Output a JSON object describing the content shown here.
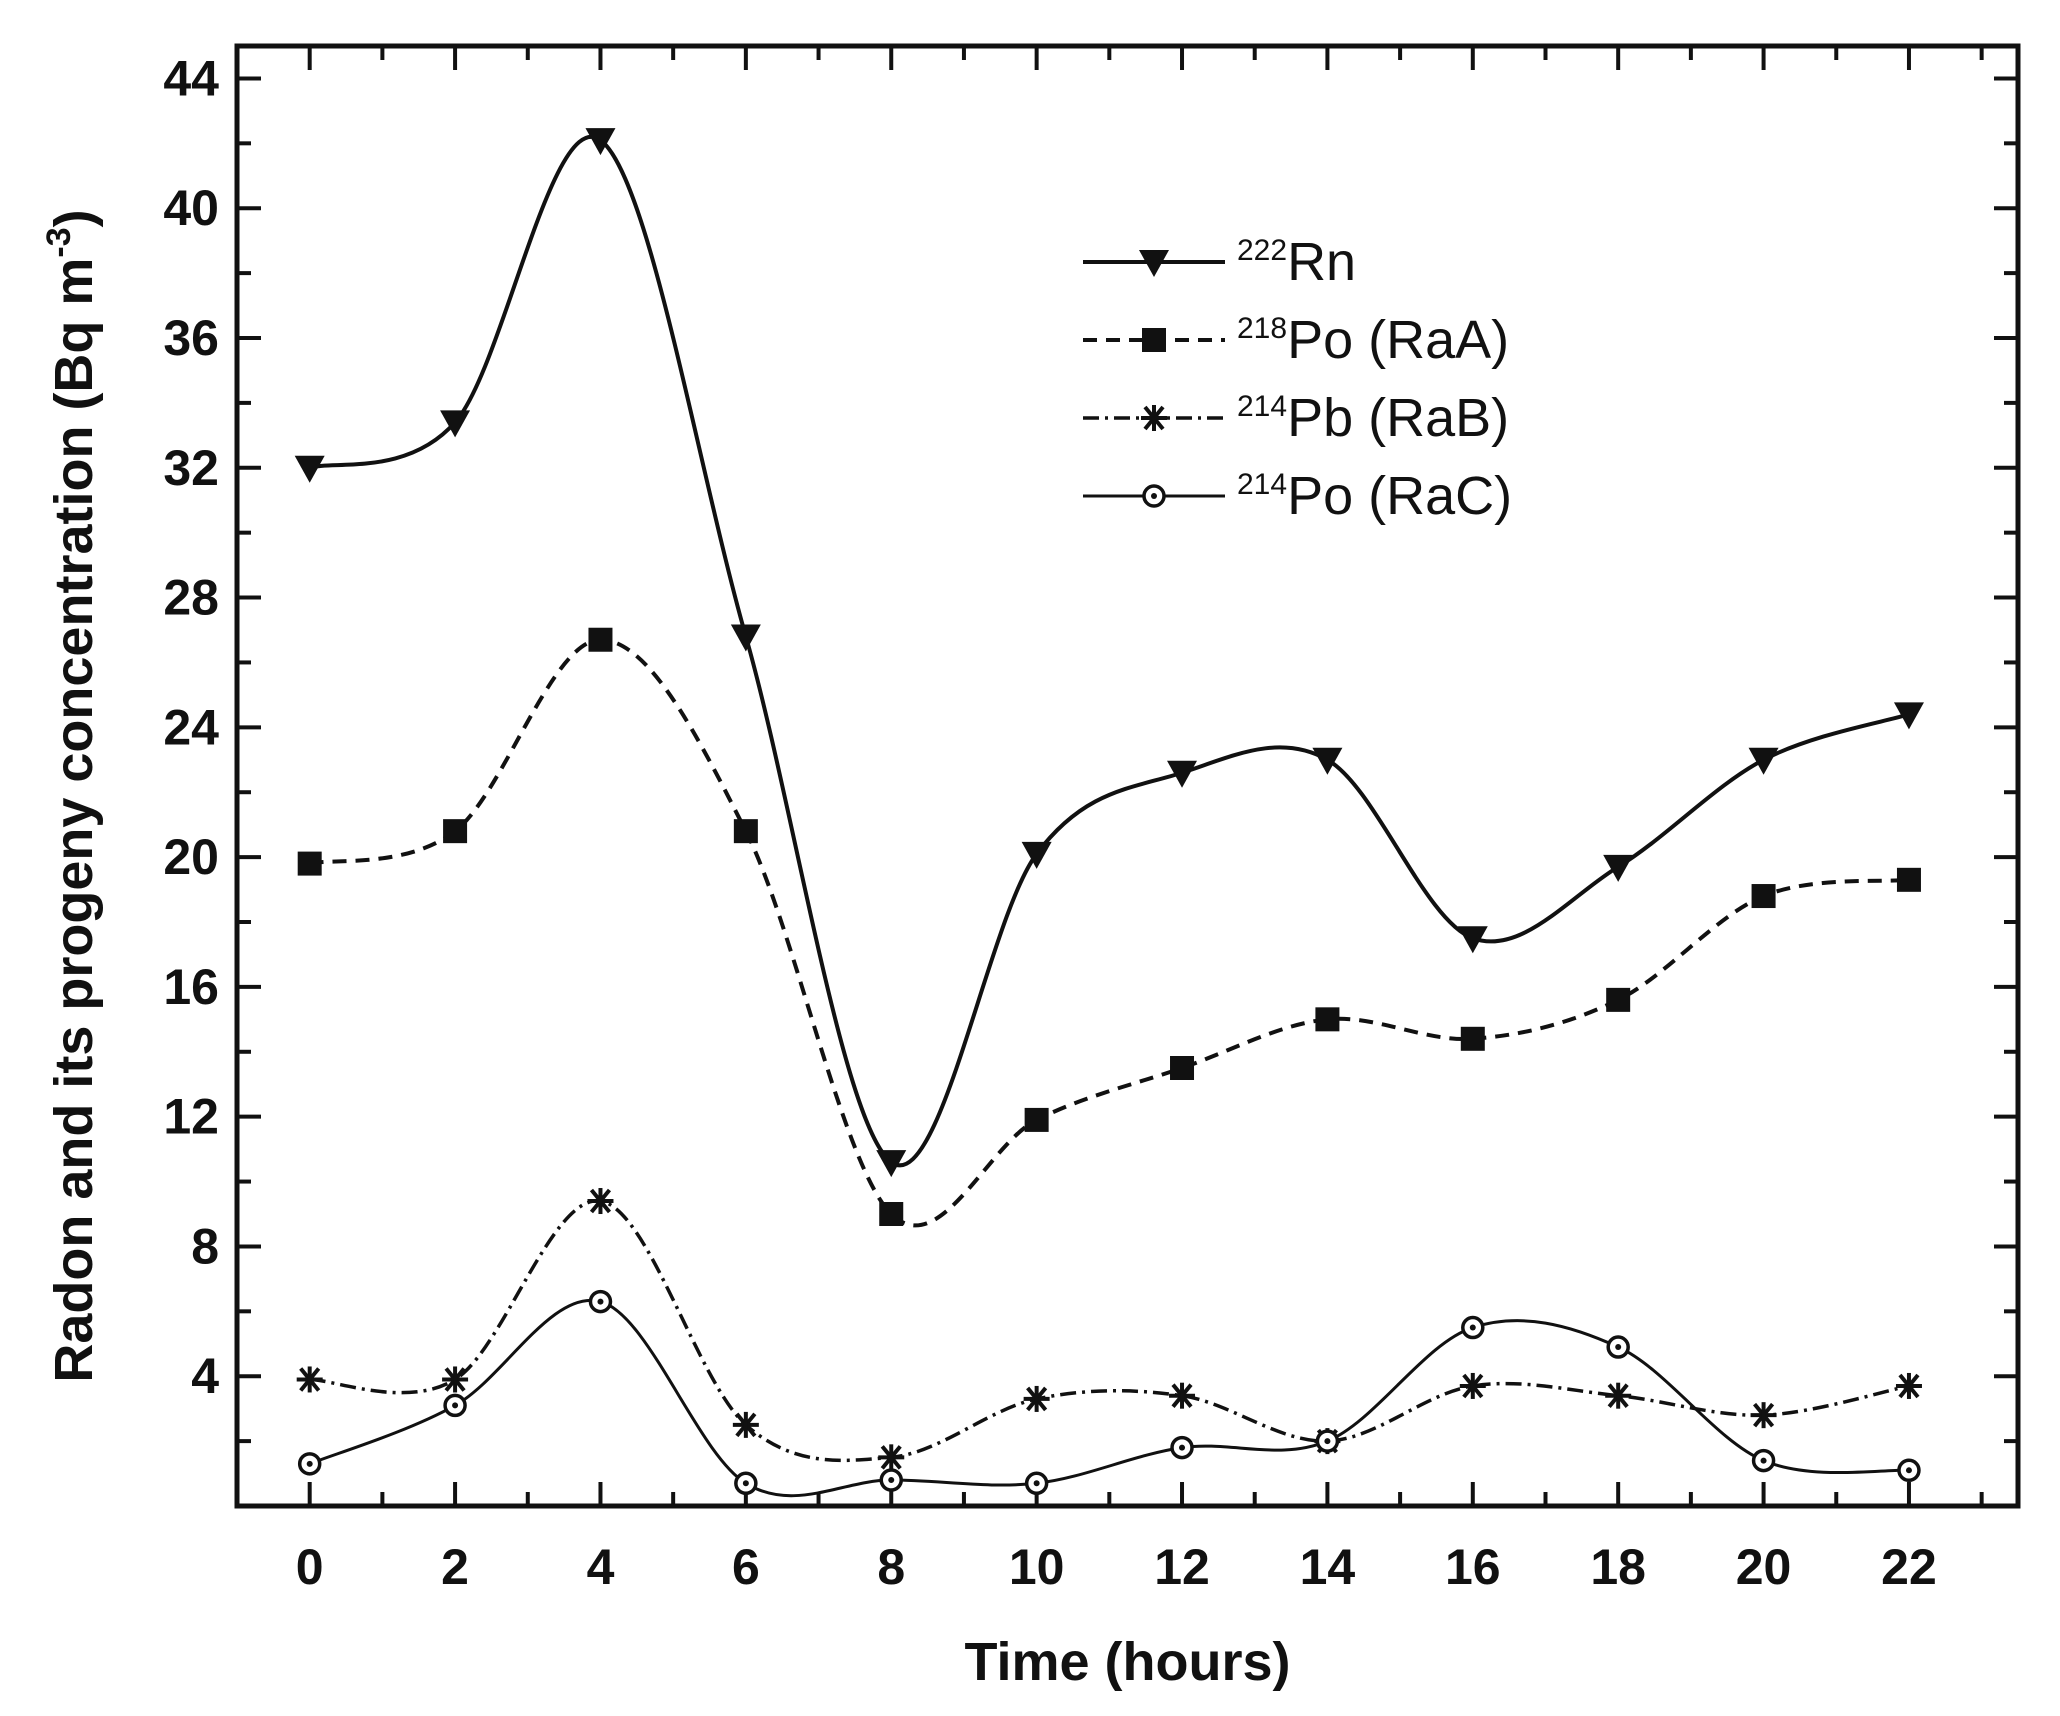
{
  "chart_data": {
    "type": "line",
    "title": "",
    "xlabel": "Time (hours)",
    "ylabel": "Radon and its progeny concentration (Bq m⁻³)",
    "ylabel_main": "Radon and its progeny concentration (Bq m",
    "ylabel_sup": "-3",
    "ylabel_close": ")",
    "xlim": [
      -1,
      23.5
    ],
    "ylim": [
      0,
      45
    ],
    "x": [
      0,
      2,
      4,
      6,
      8,
      10,
      12,
      14,
      16,
      18,
      20,
      22
    ],
    "x_ticks": [
      "0",
      "2",
      "4",
      "6",
      "8",
      "10",
      "12",
      "14",
      "16",
      "18",
      "20",
      "22"
    ],
    "y_ticks": [
      "4",
      "8",
      "12",
      "16",
      "20",
      "24",
      "28",
      "32",
      "36",
      "40",
      "44"
    ],
    "legend_position": "top-right",
    "series": [
      {
        "name": "²²²Rn",
        "legend_sup": "222",
        "legend_label": "Rn",
        "marker": "triangle-down",
        "line": "solid",
        "values": [
          32,
          33.4,
          42.1,
          26.8,
          10.6,
          20.1,
          22.6,
          23.0,
          17.5,
          19.7,
          23.0,
          24.4
        ]
      },
      {
        "name": "²¹⁸Po (RaA)",
        "legend_sup": "218",
        "legend_label": "Po (RaA)",
        "marker": "square",
        "line": "dashed",
        "values": [
          19.8,
          20.8,
          26.7,
          20.8,
          9.0,
          11.9,
          13.5,
          15.0,
          14.4,
          15.6,
          18.8,
          19.3
        ]
      },
      {
        "name": "²¹⁴Pb (RaB)",
        "legend_sup": "214",
        "legend_label": "Pb (RaB)",
        "marker": "asterisk",
        "line": "dashdot",
        "values": [
          3.9,
          3.9,
          9.4,
          2.5,
          1.5,
          3.3,
          3.4,
          2.0,
          3.7,
          3.4,
          2.8,
          3.7
        ]
      },
      {
        "name": "²¹⁴Po (RaC)",
        "legend_sup": "214",
        "legend_label": "Po (RaC)",
        "marker": "circle-open",
        "line": "solid-thin",
        "values": [
          1.3,
          3.1,
          6.3,
          0.7,
          0.8,
          0.7,
          1.8,
          2.0,
          5.5,
          4.9,
          1.4,
          1.1
        ]
      }
    ]
  }
}
